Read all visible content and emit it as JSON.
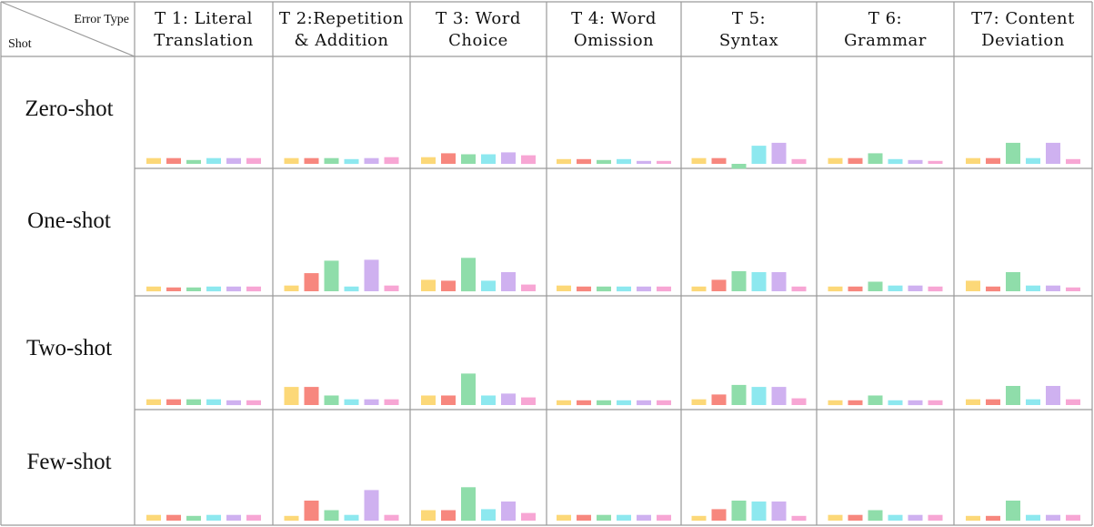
{
  "chart_data": {
    "type": "bar",
    "corner": {
      "column_label": "Error Type",
      "row_label": "Shot"
    },
    "columns": [
      [
        "T 1: Literal",
        "Translation"
      ],
      [
        "T 2:Repetition",
        "& Addition"
      ],
      [
        "T 3: Word",
        "Choice"
      ],
      [
        "T 4: Word",
        "Omission"
      ],
      [
        "T 5:",
        "Syntax"
      ],
      [
        "T 6:",
        "Grammar"
      ],
      [
        "T7: Content",
        "Deviation"
      ]
    ],
    "rows": [
      "Zero-shot",
      "One-shot",
      "Two-shot",
      "Few-shot"
    ],
    "bar_colors": [
      "#fcd878",
      "#f7877e",
      "#8fddaa",
      "#8de8ef",
      "#cfb1f0",
      "#f7a6d4"
    ],
    "baseline": 0,
    "ylim": [
      -5,
      100
    ],
    "values": [
      [
        [
          6,
          6,
          4,
          6,
          6,
          6
        ],
        [
          6,
          6,
          6,
          5,
          6,
          7
        ],
        [
          7,
          11,
          10,
          10,
          12,
          9
        ],
        [
          5,
          5,
          4,
          5,
          3,
          3
        ],
        [
          6,
          6,
          -5,
          19,
          22,
          5
        ],
        [
          6,
          6,
          11,
          5,
          4,
          3
        ],
        [
          6,
          6,
          22,
          6,
          22,
          5
        ]
      ],
      [
        [
          5,
          4,
          4,
          5,
          5,
          5
        ],
        [
          6,
          19,
          32,
          5,
          33,
          6
        ],
        [
          12,
          11,
          35,
          11,
          20,
          7
        ],
        [
          6,
          5,
          5,
          5,
          5,
          5
        ],
        [
          5,
          12,
          21,
          20,
          20,
          5
        ],
        [
          5,
          5,
          10,
          6,
          6,
          5
        ],
        [
          11,
          5,
          20,
          6,
          6,
          4
        ]
      ],
      [
        [
          6,
          6,
          6,
          6,
          5,
          5
        ],
        [
          19,
          19,
          10,
          6,
          6,
          6
        ],
        [
          10,
          10,
          33,
          10,
          12,
          8
        ],
        [
          5,
          5,
          5,
          5,
          5,
          5
        ],
        [
          6,
          11,
          21,
          19,
          19,
          7
        ],
        [
          5,
          5,
          10,
          5,
          5,
          5
        ],
        [
          6,
          6,
          20,
          6,
          20,
          6
        ]
      ],
      [
        [
          6,
          6,
          5,
          6,
          6,
          6
        ],
        [
          5,
          21,
          11,
          6,
          32,
          6
        ],
        [
          11,
          11,
          35,
          12,
          20,
          8
        ],
        [
          6,
          6,
          6,
          6,
          6,
          6
        ],
        [
          5,
          12,
          21,
          20,
          20,
          5
        ],
        [
          6,
          6,
          11,
          6,
          6,
          6
        ],
        [
          5,
          5,
          21,
          6,
          6,
          6
        ]
      ]
    ]
  }
}
